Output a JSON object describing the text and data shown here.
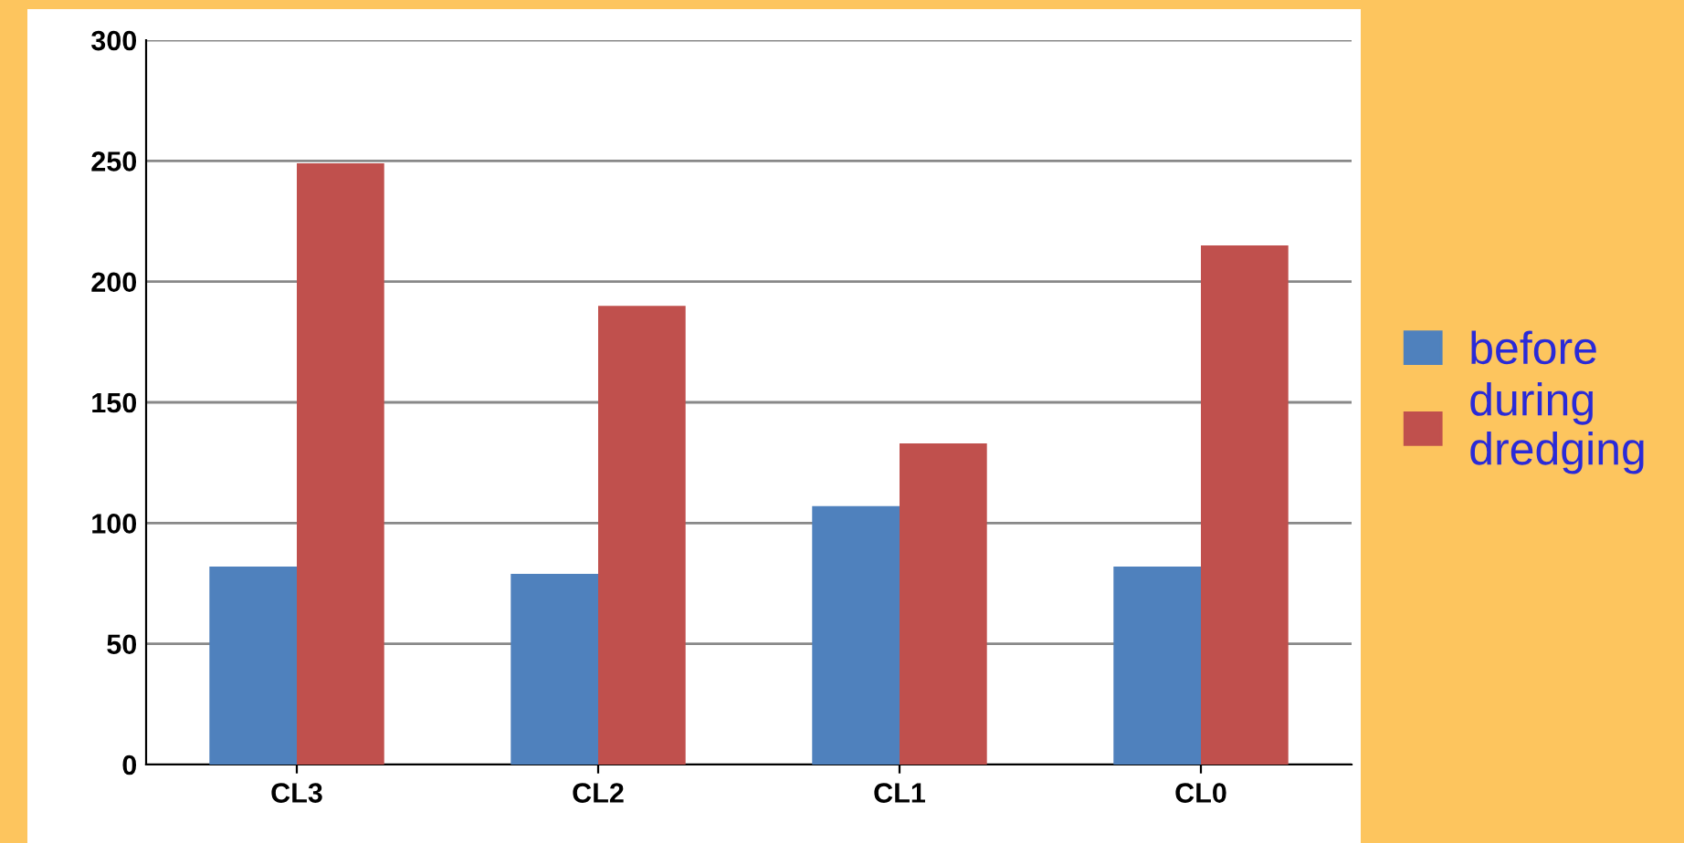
{
  "chart_data": {
    "type": "bar",
    "categories": [
      "CL3",
      "CL2",
      "CL1",
      "CL0"
    ],
    "series": [
      {
        "name": "before",
        "color": "#4f81bd",
        "values": [
          82,
          79,
          107,
          82
        ]
      },
      {
        "name": "during dredging",
        "color": "#c0504d",
        "values": [
          249,
          190,
          133,
          215
        ]
      }
    ],
    "ylim": [
      0,
      300
    ],
    "yticks": [
      0,
      50,
      100,
      150,
      200,
      250,
      300
    ],
    "grid": "y",
    "legend": "right"
  }
}
